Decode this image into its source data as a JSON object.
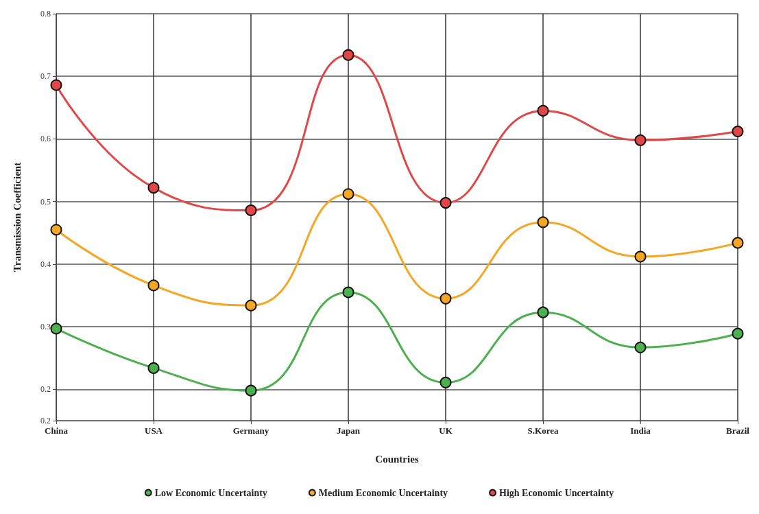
{
  "chart_data": {
    "type": "line",
    "xlabel": "Countries",
    "ylabel": "Transmission Coefficient",
    "categories": [
      "China",
      "USA",
      "Germany",
      "Japan",
      "UK",
      "S.Korea",
      "India",
      "Brazil"
    ],
    "series": [
      {
        "name": "Low Economic Uncertainty",
        "color": "#4caf50",
        "values": [
          0.297,
          0.234,
          0.198,
          0.355,
          0.211,
          0.323,
          0.267,
          0.289
        ]
      },
      {
        "name": "Medium Economic Uncertainty",
        "color": "#f5a623",
        "values": [
          0.455,
          0.366,
          0.334,
          0.512,
          0.345,
          0.467,
          0.412,
          0.434
        ]
      },
      {
        "name": "High Economic Uncertainty",
        "color": "#e04848",
        "values": [
          0.686,
          0.522,
          0.486,
          0.734,
          0.498,
          0.645,
          0.598,
          0.612
        ]
      }
    ],
    "ylim": [
      0.15,
      0.8
    ],
    "yticks": [
      {
        "value": 0.15,
        "label": "0.2"
      },
      0.2,
      0.3,
      0.4,
      0.5,
      0.6,
      0.7,
      0.8
    ],
    "grid": true,
    "legend": "bottom",
    "marker": "circle",
    "line_style": "solid"
  }
}
